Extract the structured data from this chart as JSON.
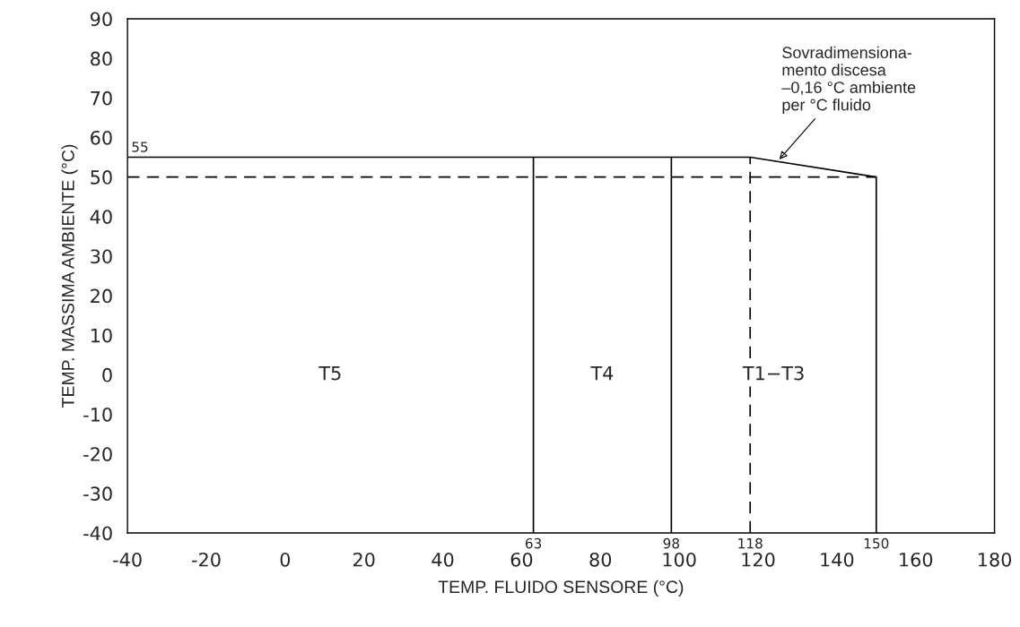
{
  "chart_data": {
    "type": "line",
    "xlabel": "TEMP. FLUIDO SENSORE (°C)",
    "ylabel": "TEMP. MASSIMA AMBIENTE (°C)",
    "xlim": [
      -40,
      180
    ],
    "xticks": [
      -40,
      -20,
      0,
      20,
      40,
      60,
      80,
      100,
      120,
      140,
      160,
      180
    ],
    "ylim": [
      -40,
      90
    ],
    "yticks": [
      -40,
      -30,
      -20,
      -10,
      0,
      10,
      20,
      30,
      40,
      50,
      60,
      70,
      80,
      90
    ],
    "grid": false,
    "marker": "none",
    "series": [
      {
        "color": "#000000",
        "x": [
          -40,
          118,
          150,
          150
        ],
        "values": [
          55,
          55,
          50,
          -40
        ],
        "line_style": "solid"
      },
      {
        "color": "#000000",
        "x": [
          63,
          63
        ],
        "values": [
          -40,
          55
        ],
        "line_style": "solid"
      },
      {
        "color": "#000000",
        "x": [
          98,
          98
        ],
        "values": [
          -40,
          55
        ],
        "line_style": "solid"
      },
      {
        "color": "#000000",
        "x": [
          -40,
          150
        ],
        "values": [
          50,
          50
        ],
        "line_style": "dashed"
      },
      {
        "color": "#000000",
        "x": [
          118,
          118
        ],
        "values": [
          -40,
          55
        ],
        "line_style": "dashed"
      }
    ],
    "annotations": [
      "T5",
      "T4",
      "T1−T3",
      {
        "text": "55",
        "x": -40,
        "y": 55
      },
      {
        "text": "63",
        "x": 63,
        "y": -40
      },
      {
        "text": "98",
        "x": 98,
        "y": -40
      },
      {
        "text": "118",
        "x": 118,
        "y": -40
      },
      {
        "text": "150",
        "x": 150,
        "y": -40
      },
      {
        "text": "Sovradimensiona-\nmento discesa\n–0,16 °C ambiente\nper °C fluido",
        "x": 125,
        "y": 54
      }
    ]
  }
}
